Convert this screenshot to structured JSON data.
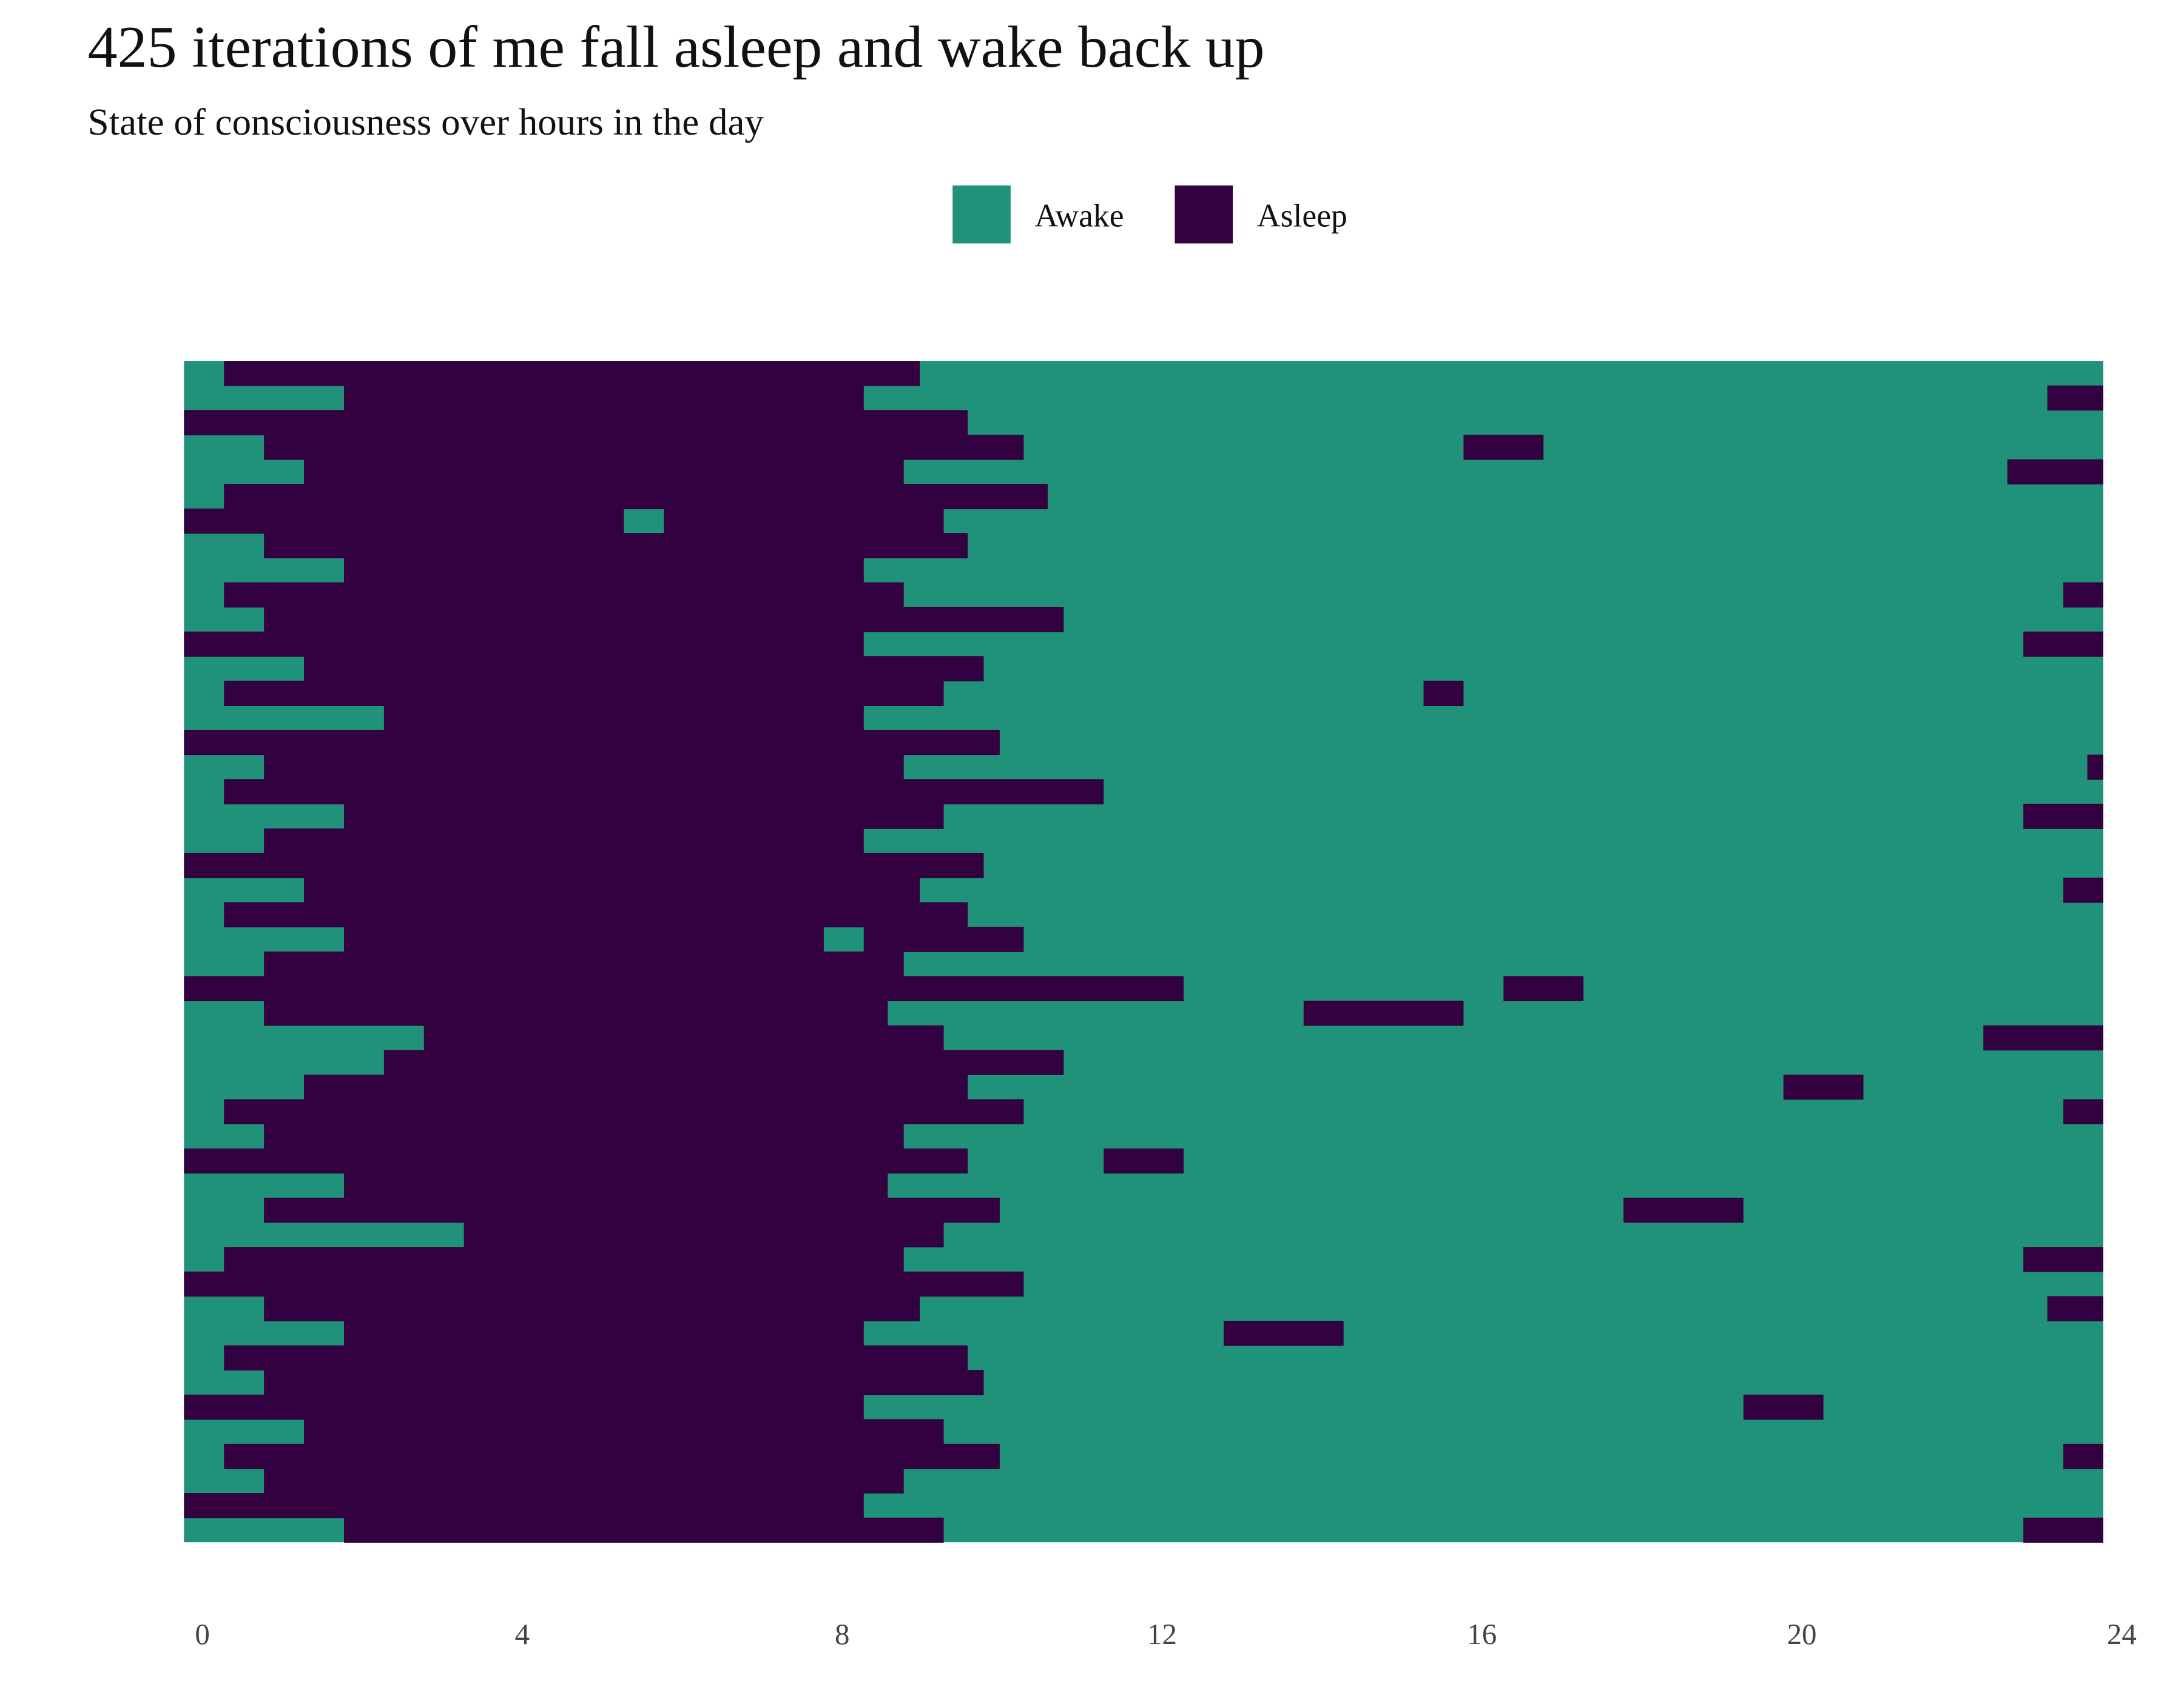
{
  "chart_data": {
    "type": "timeline",
    "title": "425 iterations of me fall asleep and wake back up",
    "subtitle": "State of consciousness over hours in the day",
    "series": [
      {
        "name": "Awake",
        "color": "#21927a"
      },
      {
        "name": "Asleep",
        "color": "#330040"
      }
    ],
    "xlim": [
      0,
      24
    ],
    "xticks": [
      0,
      4,
      8,
      12,
      16,
      20,
      24
    ],
    "rows": [
      [
        [
          0.5,
          9.2
        ]
      ],
      [
        [
          2,
          8.5
        ],
        [
          23.3,
          24
        ]
      ],
      [
        [
          0,
          9.8
        ]
      ],
      [
        [
          1,
          10.5
        ],
        [
          16,
          17
        ]
      ],
      [
        [
          1.5,
          9
        ],
        [
          22.8,
          24
        ]
      ],
      [
        [
          0.5,
          10.8
        ]
      ],
      [
        [
          0,
          5.5
        ],
        [
          6,
          9.5
        ]
      ],
      [
        [
          1,
          9.8
        ]
      ],
      [
        [
          2,
          8.5
        ]
      ],
      [
        [
          0.5,
          9
        ],
        [
          23.5,
          24
        ]
      ],
      [
        [
          1,
          11
        ]
      ],
      [
        [
          0,
          8.5
        ],
        [
          23,
          24
        ]
      ],
      [
        [
          1.5,
          10
        ]
      ],
      [
        [
          0.5,
          9.5
        ],
        [
          15.5,
          16
        ]
      ],
      [
        [
          2.5,
          8.5
        ]
      ],
      [
        [
          0,
          10.2
        ]
      ],
      [
        [
          1,
          9
        ],
        [
          23.8,
          24
        ]
      ],
      [
        [
          0.5,
          11.5
        ]
      ],
      [
        [
          2,
          9.5
        ],
        [
          23,
          24
        ]
      ],
      [
        [
          1,
          8.5
        ]
      ],
      [
        [
          0,
          10
        ]
      ],
      [
        [
          1.5,
          9.2
        ],
        [
          23.5,
          24
        ]
      ],
      [
        [
          0.5,
          9.8
        ]
      ],
      [
        [
          2,
          8
        ],
        [
          8.5,
          10.5
        ]
      ],
      [
        [
          1,
          9
        ]
      ],
      [
        [
          0,
          12.5
        ],
        [
          16.5,
          17.5
        ]
      ],
      [
        [
          1,
          8.8
        ],
        [
          14,
          16
        ]
      ],
      [
        [
          3,
          9.5
        ],
        [
          22.5,
          24
        ]
      ],
      [
        [
          2.5,
          11
        ]
      ],
      [
        [
          1.5,
          9.8
        ],
        [
          20,
          21
        ]
      ],
      [
        [
          0.5,
          10.5
        ],
        [
          23.5,
          24
        ]
      ],
      [
        [
          1,
          9
        ]
      ],
      [
        [
          0,
          9.8
        ],
        [
          11.5,
          12.5
        ]
      ],
      [
        [
          2,
          8.8
        ]
      ],
      [
        [
          1,
          10.2
        ],
        [
          18,
          19.5
        ]
      ],
      [
        [
          3.5,
          9.5
        ]
      ],
      [
        [
          0.5,
          9
        ],
        [
          23,
          24
        ]
      ],
      [
        [
          0,
          10.5
        ]
      ],
      [
        [
          1,
          9.2
        ],
        [
          23.3,
          24
        ]
      ],
      [
        [
          2,
          8.5
        ],
        [
          13,
          14.5
        ]
      ],
      [
        [
          0.5,
          9.8
        ]
      ],
      [
        [
          1,
          10
        ]
      ],
      [
        [
          0,
          8.5
        ],
        [
          19.5,
          20.5
        ]
      ],
      [
        [
          1.5,
          9.5
        ]
      ],
      [
        [
          0.5,
          10.2
        ],
        [
          23.5,
          24
        ]
      ],
      [
        [
          1,
          9
        ]
      ],
      [
        [
          0,
          8.5
        ]
      ],
      [
        [
          2,
          9.5
        ],
        [
          23,
          24
        ]
      ]
    ]
  }
}
